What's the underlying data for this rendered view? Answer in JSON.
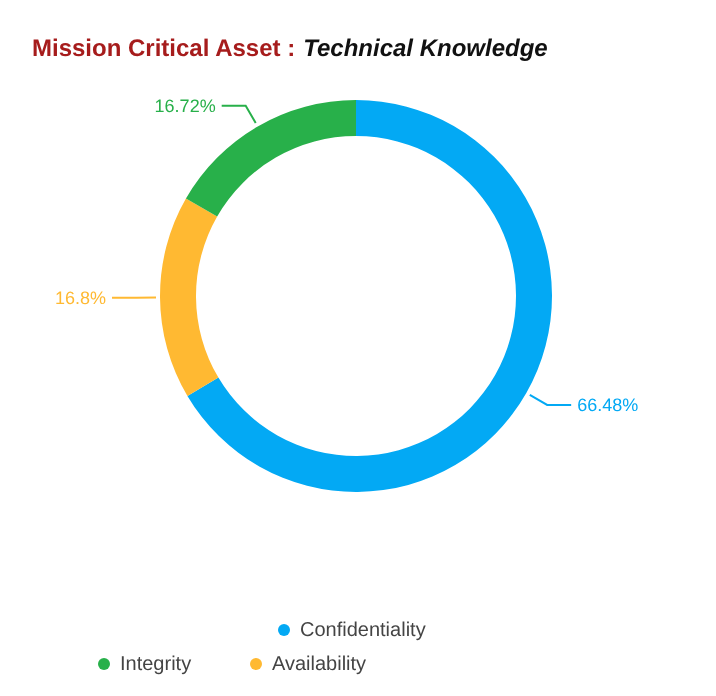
{
  "chart_data": {
    "type": "donut",
    "title": "Mission Critical Asset :",
    "subtitle": "Technical Knowledge",
    "categories": [
      "Confidentiality",
      "Availability",
      "Integrity"
    ],
    "values": [
      66.48,
      16.8,
      16.72
    ],
    "colors": [
      "#03a9f4",
      "#ffb932",
      "#28b04a"
    ],
    "value_labels": [
      "66.48%",
      "16.8%",
      "16.72%"
    ],
    "legend": "bottom"
  }
}
